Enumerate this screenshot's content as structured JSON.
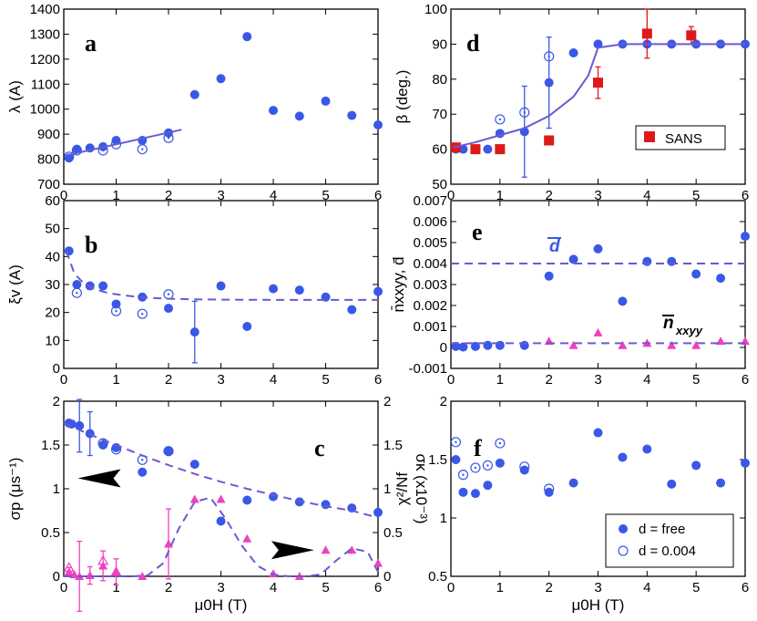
{
  "chart_data": [
    {
      "id": "a",
      "type": "scatter",
      "panel_label": "a",
      "ylabel": "λ (A)",
      "xlim": [
        0,
        6
      ],
      "ylim": [
        700,
        1400
      ],
      "xticks": [
        "0",
        "1",
        "2",
        "3",
        "4",
        "5",
        "6"
      ],
      "yticks": [
        "700",
        "800",
        "900",
        "1000",
        "1100",
        "1200",
        "1300",
        "1400"
      ],
      "series": [
        {
          "name": "free",
          "style": "filled-circle",
          "color": "#3a58e6",
          "x": [
            0.1,
            0.25,
            0.5,
            0.75,
            1.0,
            1.5,
            2.0,
            2.5,
            3.0,
            3.5,
            4.0,
            4.5,
            5.0,
            5.5,
            6.0
          ],
          "y": [
            805,
            840,
            845,
            850,
            875,
            875,
            905,
            1058,
            1122,
            1290,
            995,
            972,
            1032,
            975,
            937
          ]
        },
        {
          "name": "fixed",
          "style": "open-circle",
          "color": "#3a58e6",
          "x": [
            0.1,
            0.25,
            0.75,
            1.0,
            1.5,
            2.0
          ],
          "y": [
            810,
            835,
            835,
            860,
            840,
            885
          ]
        },
        {
          "name": "fit",
          "style": "line",
          "color": "#6a5ad0",
          "x": [
            0.05,
            2.25
          ],
          "y": [
            815,
            918
          ]
        }
      ]
    },
    {
      "id": "b",
      "type": "scatter",
      "panel_label": "b",
      "ylabel": "ξv (A)",
      "xlim": [
        0,
        6
      ],
      "ylim": [
        0,
        60
      ],
      "xticks": [
        "0",
        "1",
        "2",
        "3",
        "4",
        "5",
        "6"
      ],
      "yticks": [
        "0",
        "10",
        "20",
        "30",
        "40",
        "50",
        "60"
      ],
      "series": [
        {
          "name": "free",
          "style": "filled-circle",
          "color": "#3a58e6",
          "x": [
            0.1,
            0.25,
            0.5,
            0.75,
            1.0,
            1.5,
            2.0,
            2.5,
            3.0,
            3.5,
            4.0,
            4.5,
            5.0,
            5.5,
            6.0
          ],
          "y": [
            42,
            30,
            29.5,
            29.5,
            23,
            25.5,
            21.5,
            13,
            29.5,
            15,
            28.5,
            28,
            25.5,
            21,
            27.5
          ],
          "yerr": [
            0,
            0,
            0,
            0,
            0,
            0,
            0,
            11,
            0,
            0,
            0,
            0,
            0,
            0,
            0
          ]
        },
        {
          "name": "fixed",
          "style": "open-circle",
          "color": "#3a58e6",
          "x": [
            0.25,
            1.0,
            1.5,
            2.0
          ],
          "y": [
            27,
            20.5,
            19.5,
            26.5
          ]
        },
        {
          "name": "fit",
          "style": "dashed",
          "color": "#6a5ad0",
          "x": [
            0.05,
            0.2,
            0.4,
            0.6,
            0.8,
            1.0,
            1.3,
            1.6,
            2.0,
            2.5,
            3,
            4,
            5,
            6
          ],
          "y": [
            42,
            34,
            30,
            28.3,
            27.2,
            26.5,
            25.8,
            25.3,
            24.9,
            24.7,
            24.6,
            24.5,
            24.5,
            24.5
          ]
        }
      ]
    },
    {
      "id": "c",
      "type": "scatter",
      "panel_label": "c",
      "xlabel": "μ0H (T)",
      "ylabel": "σp (μs⁻¹)",
      "ylabel_right": "σκ (x10⁻³)",
      "xlim": [
        0,
        6
      ],
      "ylim": [
        0,
        2
      ],
      "ylim_right": [
        0,
        2
      ],
      "xticks": [
        "0",
        "1",
        "2",
        "3",
        "4",
        "5",
        "6"
      ],
      "yticks": [
        "0",
        "0.5",
        "1",
        "1.5",
        "2"
      ],
      "yticks_right": [
        "0",
        "0.5",
        "1",
        "1.5",
        "2"
      ],
      "series": [
        {
          "name": "σp free",
          "style": "filled-circle",
          "color": "#3a58e6",
          "x": [
            0.1,
            0.15,
            0.3,
            0.5,
            0.75,
            1.0,
            1.5,
            2.0,
            2.5,
            3.0,
            3.5,
            4.0,
            4.5,
            5.0,
            5.5,
            6.0
          ],
          "y": [
            1.75,
            1.74,
            1.72,
            1.63,
            1.5,
            1.47,
            1.19,
            1.43,
            1.28,
            0.63,
            0.87,
            0.91,
            0.85,
            0.82,
            0.78,
            0.73
          ],
          "yerr": [
            0,
            0,
            0.3,
            0.25,
            0,
            0,
            0,
            0,
            0,
            0,
            0,
            0,
            0,
            0,
            0,
            0
          ]
        },
        {
          "name": "σp fixed",
          "style": "open-circle",
          "color": "#3a58e6",
          "x": [
            0.75,
            1.0,
            1.5,
            2.0
          ],
          "y": [
            1.52,
            1.45,
            1.33,
            1.43
          ]
        },
        {
          "name": "σp fit",
          "style": "dashed",
          "color": "#6a5ad0",
          "x": [
            0,
            0.5,
            1,
            1.5,
            2,
            2.5,
            3,
            3.5,
            4,
            4.5,
            5,
            5.5,
            6
          ],
          "y": [
            1.75,
            1.62,
            1.5,
            1.38,
            1.27,
            1.17,
            1.08,
            1.0,
            0.93,
            0.86,
            0.8,
            0.75,
            0.67
          ]
        },
        {
          "name": "σκ",
          "style": "filled-triangle",
          "color": "#f040c0",
          "axis": "right",
          "x": [
            0.1,
            0.2,
            0.3,
            0.5,
            0.75,
            1.0,
            1.5,
            2.0,
            2.5,
            3.0,
            3.5,
            4.0,
            4.5,
            5.0,
            5.5,
            6.0
          ],
          "y": [
            0.05,
            0.02,
            0.0,
            0.01,
            0.12,
            0.05,
            0.0,
            0.37,
            0.88,
            0.88,
            0.43,
            0.03,
            0.0,
            0.3,
            0.3,
            0.15
          ],
          "yerr": [
            0.05,
            0,
            0.4,
            0.1,
            0.17,
            0.15,
            0,
            0.4,
            0,
            0,
            0,
            0,
            0,
            0,
            0,
            0
          ]
        },
        {
          "name": "σκ fixed",
          "style": "open-triangle",
          "color": "#f040c0",
          "axis": "right",
          "x": [
            0.1,
            0.75,
            1.0
          ],
          "y": [
            0.1,
            0.18,
            0.05
          ]
        },
        {
          "name": "σκ fit",
          "style": "dashed",
          "color": "#6a5ad0",
          "axis": "right",
          "x": [
            0,
            1.0,
            1.3,
            1.6,
            1.9,
            2.2,
            2.5,
            2.8,
            3.1,
            3.4,
            3.7,
            4.0,
            4.3,
            4.6,
            4.9,
            5.2,
            5.5,
            5.8,
            6.0
          ],
          "y": [
            0,
            0,
            0,
            0.01,
            0.15,
            0.55,
            0.85,
            0.9,
            0.65,
            0.35,
            0.12,
            0.02,
            0,
            0,
            0.02,
            0.18,
            0.32,
            0.28,
            0.05
          ]
        }
      ],
      "arrows": [
        {
          "x": 1.0,
          "y": 1.12,
          "direction": "left"
        },
        {
          "x": 4.05,
          "y": 0.3,
          "direction": "right"
        }
      ]
    },
    {
      "id": "d",
      "type": "scatter",
      "panel_label": "d",
      "ylabel": "β (deg.)",
      "xlim": [
        0,
        6
      ],
      "ylim": [
        50,
        100
      ],
      "xticks": [
        "0",
        "1",
        "2",
        "3",
        "4",
        "5",
        "6"
      ],
      "yticks": [
        "50",
        "60",
        "70",
        "80",
        "90",
        "100"
      ],
      "legend": {
        "label": "SANS",
        "location": "right"
      },
      "series": [
        {
          "name": "free",
          "style": "filled-circle",
          "color": "#3a58e6",
          "x": [
            0.1,
            0.25,
            0.5,
            0.75,
            1.0,
            1.5,
            2.0,
            2.5,
            3.0,
            3.5,
            4.0,
            4.5,
            5.0,
            5.5,
            6.0
          ],
          "y": [
            60,
            60,
            60,
            60,
            64.5,
            65,
            79,
            87.5,
            90,
            90,
            90,
            90,
            90,
            90,
            90
          ],
          "yerr": [
            0,
            0,
            0,
            0,
            0,
            13,
            13,
            0,
            0,
            0,
            0,
            0,
            0,
            0,
            0
          ]
        },
        {
          "name": "fixed",
          "style": "open-circle",
          "color": "#3a58e6",
          "x": [
            1.0,
            1.5,
            2.0
          ],
          "y": [
            68.5,
            70.5,
            86.5
          ]
        },
        {
          "name": "SANS",
          "style": "filled-square",
          "color": "#dd1a1a",
          "x": [
            0.1,
            0.5,
            1.0,
            2.0,
            3.0,
            4.0,
            4.9
          ],
          "y": [
            60.5,
            60,
            60,
            62.5,
            79,
            93,
            92.5
          ],
          "yerr": [
            0,
            0,
            0,
            0,
            4.5,
            7,
            2.5
          ]
        },
        {
          "name": "fit",
          "style": "line",
          "color": "#6a5ad0",
          "x": [
            0.05,
            0.5,
            1,
            1.5,
            2,
            2.5,
            2.8,
            3,
            3.5,
            4,
            4.5,
            5,
            5.5,
            6
          ],
          "y": [
            60.5,
            62,
            64,
            66,
            69.5,
            75,
            81,
            89,
            90,
            90,
            90,
            90,
            90,
            90
          ]
        }
      ]
    },
    {
      "id": "e",
      "type": "scatter",
      "panel_label": "e",
      "ylabel": "n̄xxyy, d̄",
      "xlim": [
        0,
        6
      ],
      "ylim": [
        -0.001,
        0.007
      ],
      "xticks": [
        "0",
        "1",
        "2",
        "3",
        "4",
        "5",
        "6"
      ],
      "yticks": [
        "-0.001",
        "0",
        "0.001",
        "0.002",
        "0.003",
        "0.004",
        "0.005",
        "0.006",
        "0.007"
      ],
      "annotations": [
        {
          "text": "d",
          "x": 2.15,
          "y": 0.0048
        },
        {
          "text": "n",
          "sub": "xxyy",
          "x": 4.45,
          "y": 0.0009
        }
      ],
      "series": [
        {
          "name": "d̄",
          "style": "filled-circle",
          "color": "#3a58e6",
          "x": [
            0.1,
            0.25,
            0.5,
            0.75,
            1.0,
            1.5,
            2.0,
            2.5,
            3.0,
            3.5,
            4.0,
            4.5,
            5.0,
            5.5,
            6.0
          ],
          "y": [
            5e-05,
            2e-05,
            5e-05,
            0.0001,
            0.0001,
            0.0001,
            0.0034,
            0.0042,
            0.0047,
            0.0022,
            0.0041,
            0.0041,
            0.0035,
            0.0033,
            0.0053
          ]
        },
        {
          "name": "n̄xxyy",
          "style": "filled-triangle",
          "color": "#f040c0",
          "x": [
            2.0,
            2.5,
            3.0,
            3.5,
            4.0,
            4.5,
            5.0,
            5.5,
            6.0
          ],
          "y": [
            0.0003,
            0.0001,
            0.0007,
            0.0001,
            0.0002,
            0.0001,
            0.0001,
            0.0003,
            0.0003
          ]
        },
        {
          "name": "d fit",
          "style": "dashed",
          "color": "#6a5ad0",
          "x": [
            0,
            6
          ],
          "y": [
            0.004,
            0.004
          ]
        },
        {
          "name": "n fit",
          "style": "dashed",
          "color": "#6a5ad0",
          "x": [
            0,
            6
          ],
          "y": [
            0.0002,
            0.0002
          ]
        }
      ]
    },
    {
      "id": "f",
      "type": "scatter",
      "panel_label": "f",
      "xlabel": "μ0H (T)",
      "ylabel": "χ²/Nf",
      "xlim": [
        0,
        6
      ],
      "ylim": [
        0.5,
        2
      ],
      "xticks": [
        "0",
        "1",
        "2",
        "3",
        "4",
        "5",
        "6"
      ],
      "yticks": [
        "0.5",
        "1",
        "1.5",
        "2"
      ],
      "legend": {
        "entries": [
          "d = free",
          "d = 0.004"
        ],
        "location": "bottom-right"
      },
      "series": [
        {
          "name": "d = free",
          "style": "filled-circle",
          "color": "#3a58e6",
          "x": [
            0.1,
            0.25,
            0.5,
            0.75,
            1.0,
            1.5,
            2.0,
            2.5,
            3.0,
            3.5,
            4.0,
            4.5,
            5.0,
            5.5,
            6.0
          ],
          "y": [
            1.5,
            1.22,
            1.21,
            1.28,
            1.47,
            1.41,
            1.22,
            1.3,
            1.73,
            1.52,
            1.59,
            1.29,
            1.45,
            1.3,
            1.47
          ]
        },
        {
          "name": "d = 0.004",
          "style": "open-circle",
          "color": "#3a58e6",
          "x": [
            0.1,
            0.25,
            0.5,
            0.75,
            1.0,
            1.5,
            2.0
          ],
          "y": [
            1.65,
            1.37,
            1.43,
            1.45,
            1.64,
            1.44,
            1.25
          ]
        }
      ]
    }
  ],
  "text": {
    "legend_d": "SANS",
    "legend_f_1": "d = free",
    "legend_f_2": "d = 0.004",
    "e_d_label": "d",
    "e_n_label": "n",
    "e_n_sub": "xxyy"
  }
}
